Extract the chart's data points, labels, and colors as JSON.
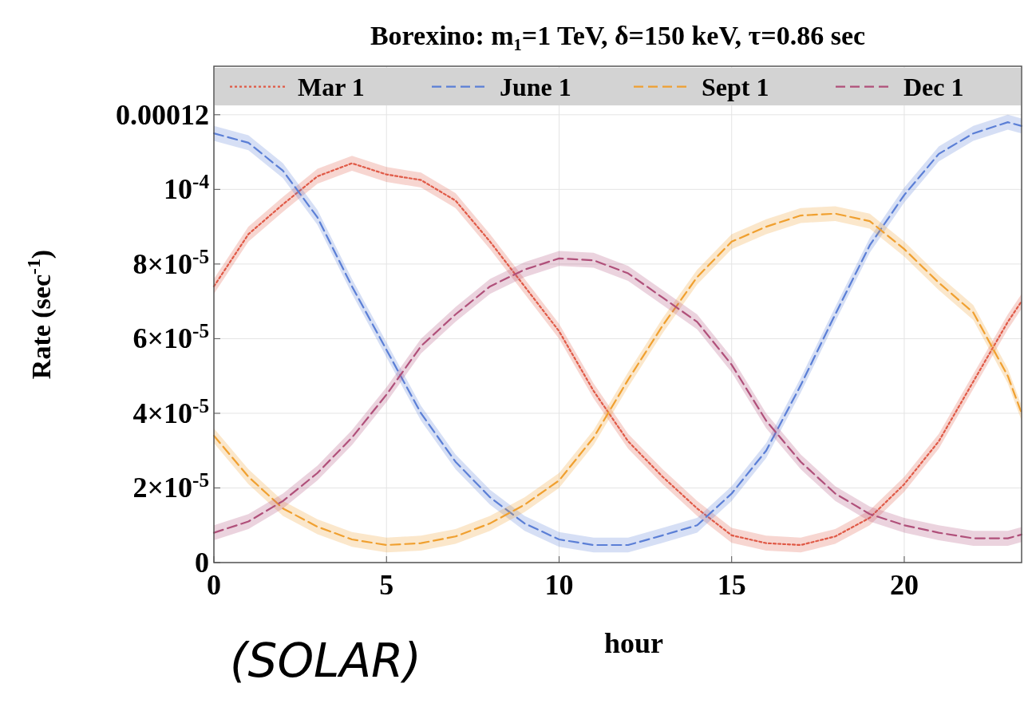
{
  "chart_data": {
    "type": "line",
    "title": "Borexino: m₁=1 TeV, δ=150 keV, τ=0.86 sec",
    "xlabel": "hour",
    "ylabel": "Rate (sec$^{-1}$)",
    "annotations": [
      "(SOLAR)"
    ],
    "x": [
      0,
      1,
      2,
      3,
      4,
      5,
      6,
      7,
      8,
      9,
      10,
      11,
      12,
      13,
      14,
      15,
      16,
      17,
      18,
      19,
      20,
      21,
      22,
      23,
      23.4
    ],
    "xlim": [
      0,
      23.4
    ],
    "xticks": [
      0,
      5,
      10,
      15,
      20
    ],
    "ylim": [
      0,
      0.000133
    ],
    "yticks": [
      0,
      {
        "value": 2e-05,
        "label": "2×10$^{-5}$"
      },
      {
        "value": 4e-05,
        "label": "4×10$^{-5}$"
      },
      {
        "value": 6e-05,
        "label": "6×10$^{-5}$"
      },
      {
        "value": 8e-05,
        "label": "8×10$^{-5}$"
      },
      {
        "value": 0.0001,
        "label": "10$^{-4}$"
      },
      0.00012
    ],
    "grid": true,
    "legend": "top",
    "series": [
      {
        "name": "Mar 1",
        "color": "#e05a47",
        "line_style": "dotted",
        "values": [
          7.4e-05,
          8.8e-05,
          9.6e-05,
          0.0001035,
          0.000107,
          0.000104,
          0.0001025,
          9.7e-05,
          8.6e-05,
          7.4e-05,
          6.2e-05,
          4.6e-05,
          3.25e-05,
          2.3e-05,
          1.45e-05,
          7.3e-06,
          5.2e-06,
          4.7e-06,
          7e-06,
          1.2e-05,
          2.1e-05,
          3.25e-05,
          4.85e-05,
          6.45e-05,
          7e-05
        ],
        "lower": [
          7.2e-05,
          8.6e-05,
          9.4e-05,
          0.0001015,
          0.000105,
          0.000102,
          0.0001005,
          9.5e-05,
          8.4e-05,
          7.2e-05,
          6e-05,
          4.4e-05,
          3.05e-05,
          2.1e-05,
          1.25e-05,
          5.3e-06,
          3.2e-06,
          2.7e-06,
          5e-06,
          1e-05,
          1.9e-05,
          3.05e-05,
          4.65e-05,
          6.25e-05,
          6.8e-05
        ],
        "upper": [
          7.6e-05,
          9e-05,
          9.8e-05,
          0.0001055,
          0.000109,
          0.000106,
          0.0001045,
          9.9e-05,
          8.8e-05,
          7.6e-05,
          6.4e-05,
          4.8e-05,
          3.45e-05,
          2.5e-05,
          1.65e-05,
          9.3e-06,
          7.2e-06,
          6.7e-06,
          9e-06,
          1.4e-05,
          2.3e-05,
          3.45e-05,
          5.05e-05,
          6.65e-05,
          7.2e-05
        ]
      },
      {
        "name": "June 1",
        "color": "#5b7fd6",
        "line_style": "dashed",
        "values": [
          0.000115,
          0.0001125,
          0.000105,
          9.25e-05,
          7.4e-05,
          5.7e-05,
          4e-05,
          2.7e-05,
          1.75e-05,
          1.05e-05,
          6.2e-06,
          4.7e-06,
          4.7e-06,
          7.3e-06,
          1e-05,
          1.85e-05,
          3e-05,
          4.75e-05,
          6.65e-05,
          8.5e-05,
          9.85e-05,
          0.0001095,
          0.000115,
          0.000118,
          0.000117
        ],
        "lower": [
          0.000113,
          0.0001105,
          0.000103,
          9.05e-05,
          7.2e-05,
          5.5e-05,
          3.8e-05,
          2.5e-05,
          1.55e-05,
          8.5e-06,
          4.2e-06,
          2.7e-06,
          2.7e-06,
          5.3e-06,
          8e-06,
          1.65e-05,
          2.8e-05,
          4.55e-05,
          6.45e-05,
          8.3e-05,
          9.65e-05,
          0.0001075,
          0.000113,
          0.000116,
          0.000115
        ],
        "upper": [
          0.000117,
          0.0001145,
          0.000107,
          9.45e-05,
          7.6e-05,
          5.9e-05,
          4.2e-05,
          2.9e-05,
          1.95e-05,
          1.25e-05,
          8.2e-06,
          6.7e-06,
          6.7e-06,
          9.3e-06,
          1.2e-05,
          2.05e-05,
          3.2e-05,
          4.95e-05,
          6.85e-05,
          8.7e-05,
          0.0001005,
          0.0001115,
          0.000117,
          0.00012,
          0.000119
        ]
      },
      {
        "name": "Sept 1",
        "color": "#f0a030",
        "line_style": "dashed",
        "values": [
          3.4e-05,
          2.3e-05,
          1.45e-05,
          9.6e-06,
          6.2e-06,
          4.7e-06,
          5.2e-06,
          7e-06,
          1.05e-05,
          1.55e-05,
          2.2e-05,
          3.35e-05,
          4.9e-05,
          6.35e-05,
          7.65e-05,
          8.6e-05,
          9e-05,
          9.3e-05,
          9.35e-05,
          9.15e-05,
          8.4e-05,
          7.5e-05,
          6.7e-05,
          5e-05,
          4e-05
        ],
        "lower": [
          3.2e-05,
          2.1e-05,
          1.25e-05,
          7.6e-06,
          4.2e-06,
          2.7e-06,
          3.2e-06,
          5e-06,
          8.5e-06,
          1.35e-05,
          2e-05,
          3.15e-05,
          4.7e-05,
          6.15e-05,
          7.45e-05,
          8.4e-05,
          8.8e-05,
          9.1e-05,
          9.15e-05,
          8.95e-05,
          8.2e-05,
          7.3e-05,
          6.5e-05,
          4.8e-05,
          3.8e-05
        ],
        "upper": [
          3.6e-05,
          2.5e-05,
          1.65e-05,
          1.16e-05,
          8.2e-06,
          6.7e-06,
          7.2e-06,
          9e-06,
          1.25e-05,
          1.75e-05,
          2.4e-05,
          3.55e-05,
          5.1e-05,
          6.55e-05,
          7.85e-05,
          8.8e-05,
          9.2e-05,
          9.5e-05,
          9.55e-05,
          9.35e-05,
          8.6e-05,
          7.7e-05,
          6.9e-05,
          5.2e-05,
          4.2e-05
        ]
      },
      {
        "name": "Dec 1",
        "color": "#b0507a",
        "line_style": "dashed",
        "values": [
          8e-06,
          1.1e-05,
          1.65e-05,
          2.4e-05,
          3.35e-05,
          4.5e-05,
          5.8e-05,
          6.65e-05,
          7.4e-05,
          7.85e-05,
          8.15e-05,
          8.1e-05,
          7.75e-05,
          7.1e-05,
          6.45e-05,
          5.3e-05,
          3.8e-05,
          2.7e-05,
          1.85e-05,
          1.3e-05,
          1e-05,
          8e-06,
          6.5e-06,
          6.5e-06,
          7.5e-06
        ],
        "lower": [
          6e-06,
          9e-06,
          1.45e-05,
          2.2e-05,
          3.15e-05,
          4.3e-05,
          5.6e-05,
          6.45e-05,
          7.2e-05,
          7.65e-05,
          7.95e-05,
          7.9e-05,
          7.55e-05,
          6.9e-05,
          6.25e-05,
          5.1e-05,
          3.6e-05,
          2.5e-05,
          1.65e-05,
          1.1e-05,
          8e-06,
          6e-06,
          4.5e-06,
          4.5e-06,
          5.5e-06
        ],
        "upper": [
          1e-05,
          1.3e-05,
          1.85e-05,
          2.6e-05,
          3.55e-05,
          4.7e-05,
          6e-05,
          6.85e-05,
          7.6e-05,
          8.05e-05,
          8.35e-05,
          8.3e-05,
          7.95e-05,
          7.3e-05,
          6.65e-05,
          5.5e-05,
          4e-05,
          2.9e-05,
          2.05e-05,
          1.5e-05,
          1.2e-05,
          1e-05,
          8.5e-06,
          8.5e-06,
          9.5e-06
        ]
      }
    ]
  }
}
